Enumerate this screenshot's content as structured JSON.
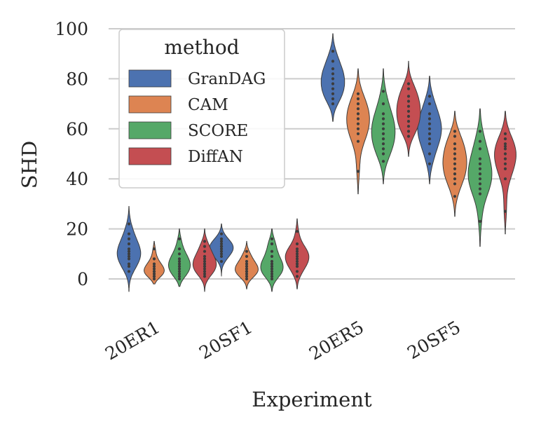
{
  "chart_data": {
    "type": "violin",
    "title": "",
    "xlabel": "Experiment",
    "ylabel": "SHD",
    "ylim": [
      -5,
      100
    ],
    "yticks": [
      0,
      20,
      40,
      60,
      80,
      100
    ],
    "grid": true,
    "categories": [
      "20ER1",
      "20SF1",
      "20ER5",
      "20SF5"
    ],
    "legend": {
      "title": "method",
      "placement": "top-left"
    },
    "series": [
      {
        "name": "GranDAG",
        "color": "#4c72b0",
        "range": [
          [
            -5,
            29
          ],
          [
            1,
            22
          ],
          [
            63,
            98
          ],
          [
            38,
            81
          ]
        ],
        "points": [
          [
            3,
            5,
            6,
            8,
            9,
            10,
            11,
            12,
            14,
            16,
            18,
            22
          ],
          [
            7,
            9,
            10,
            11,
            12,
            13,
            13,
            14,
            15,
            16,
            18
          ],
          [
            70,
            72,
            74,
            76,
            78,
            80,
            82,
            84,
            87,
            91
          ],
          [
            46,
            50,
            54,
            56,
            58,
            60,
            62,
            64,
            66,
            70,
            73
          ]
        ]
      },
      {
        "name": "CAM",
        "color": "#dd8452",
        "range": [
          [
            -2,
            15
          ],
          [
            -4,
            15
          ],
          [
            34,
            84
          ],
          [
            25,
            67
          ]
        ],
        "points": [
          [
            0,
            1,
            1,
            2,
            2,
            3,
            3,
            4,
            5,
            6,
            8,
            12
          ],
          [
            0,
            1,
            2,
            3,
            3,
            4,
            5,
            6,
            7,
            9,
            11
          ],
          [
            43,
            55,
            58,
            60,
            62,
            64,
            66,
            68,
            70,
            72,
            74
          ],
          [
            33,
            38,
            40,
            42,
            44,
            46,
            48,
            50,
            52,
            54,
            57,
            59
          ]
        ]
      },
      {
        "name": "SCORE",
        "color": "#55a868",
        "range": [
          [
            -3,
            20
          ],
          [
            -5,
            20
          ],
          [
            38,
            84
          ],
          [
            13,
            68
          ]
        ],
        "points": [
          [
            0,
            1,
            2,
            3,
            4,
            5,
            6,
            7,
            8,
            10,
            12,
            16
          ],
          [
            0,
            1,
            2,
            3,
            4,
            5,
            6,
            7,
            9,
            11,
            14,
            16
          ],
          [
            47,
            50,
            52,
            54,
            56,
            58,
            60,
            62,
            64,
            66,
            70,
            75
          ],
          [
            23,
            34,
            36,
            38,
            40,
            42,
            44,
            46,
            48,
            52,
            55,
            59
          ]
        ]
      },
      {
        "name": "DiffAN",
        "color": "#c44e52",
        "range": [
          [
            -5,
            20
          ],
          [
            -4,
            24
          ],
          [
            49,
            87
          ],
          [
            18,
            67
          ]
        ],
        "points": [
          [
            1,
            2,
            3,
            4,
            5,
            6,
            7,
            8,
            9,
            11,
            13,
            15
          ],
          [
            1,
            3,
            5,
            6,
            7,
            8,
            9,
            10,
            11,
            12,
            14,
            19
          ],
          [
            57,
            59,
            61,
            63,
            65,
            67,
            69,
            71,
            73,
            76,
            78
          ],
          [
            27,
            40,
            44,
            46,
            48,
            50,
            52,
            53,
            54,
            56,
            58
          ]
        ]
      }
    ]
  }
}
